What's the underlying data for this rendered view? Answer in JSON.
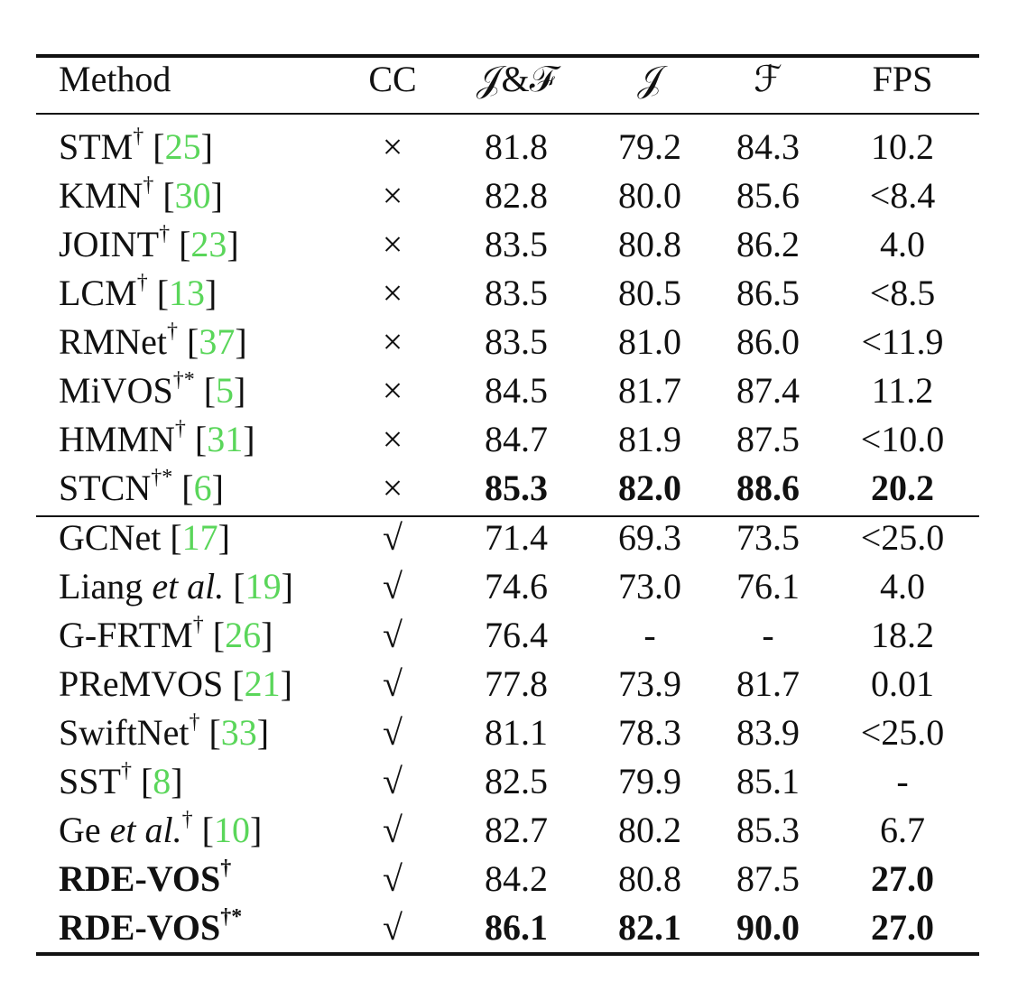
{
  "table": {
    "header": [
      "Method",
      "CC",
      "𝒥&ℱ",
      "𝒥",
      "ℱ",
      "FPS"
    ],
    "groups": [
      {
        "rows": [
          {
            "name": "STM",
            "sup": "†",
            "ref": {
              "open": "[",
              "num": "25",
              "close": "]"
            },
            "cc": "×",
            "jf": "81.8",
            "j": "79.2",
            "f": "84.3",
            "fps": "10.2"
          },
          {
            "name": "KMN",
            "sup": "†",
            "ref": {
              "open": "[",
              "num": "30",
              "close": "]"
            },
            "cc": "×",
            "jf": "82.8",
            "j": "80.0",
            "f": "85.6",
            "fps": "<8.4"
          },
          {
            "name": "JOINT",
            "sup": "†",
            "ref": {
              "open": "[",
              "num": "23",
              "close": "]"
            },
            "cc": "×",
            "jf": "83.5",
            "j": "80.8",
            "f": "86.2",
            "fps": "4.0"
          },
          {
            "name": "LCM",
            "sup": "†",
            "ref": {
              "open": "[",
              "num": "13",
              "close": "]"
            },
            "cc": "×",
            "jf": "83.5",
            "j": "80.5",
            "f": "86.5",
            "fps": "<8.5"
          },
          {
            "name": "RMNet",
            "sup": "†",
            "ref": {
              "open": "[",
              "num": "37",
              "close": "]"
            },
            "cc": "×",
            "jf": "83.5",
            "j": "81.0",
            "f": "86.0",
            "fps": "<11.9"
          },
          {
            "name": "MiVOS",
            "sup": "†*",
            "ref": {
              "open": "[",
              "num": "5",
              "close": "]"
            },
            "cc": "×",
            "jf": "84.5",
            "j": "81.7",
            "f": "87.4",
            "fps": "11.2"
          },
          {
            "name": "HMMN",
            "sup": "†",
            "ref": {
              "open": "[",
              "num": "31",
              "close": "]"
            },
            "cc": "×",
            "jf": "84.7",
            "j": "81.9",
            "f": "87.5",
            "fps": "<10.0"
          },
          {
            "name": "STCN",
            "sup": "†*",
            "ref": {
              "open": "[",
              "num": "6",
              "close": "]"
            },
            "cc": "×",
            "jf": "85.3",
            "j": "82.0",
            "f": "88.6",
            "fps": "20.2",
            "bold": [
              "jf",
              "j",
              "f",
              "fps"
            ]
          }
        ]
      },
      {
        "rows": [
          {
            "name": "GCNet",
            "ref": {
              "open": "[",
              "num": "17",
              "close": "]"
            },
            "cc": "√",
            "jf": "71.4",
            "j": "69.3",
            "f": "73.5",
            "fps": "<25.0"
          },
          {
            "name": "Liang",
            "italic": "et al.",
            "ref": {
              "open": "[",
              "num": "19",
              "close": "]"
            },
            "cc": "√",
            "jf": "74.6",
            "j": "73.0",
            "f": "76.1",
            "fps": "4.0"
          },
          {
            "name": "G-FRTM",
            "sup": "†",
            "ref": {
              "open": "[",
              "num": "26",
              "close": "]"
            },
            "cc": "√",
            "jf": "76.4",
            "j": "-",
            "f": "-",
            "fps": "18.2"
          },
          {
            "name": "PReMVOS",
            "ref": {
              "open": "[",
              "num": "21",
              "close": "]"
            },
            "cc": "√",
            "jf": "77.8",
            "j": "73.9",
            "f": "81.7",
            "fps": "0.01"
          },
          {
            "name": "SwiftNet",
            "sup": "†",
            "ref": {
              "open": "[",
              "num": "33",
              "close": "]"
            },
            "cc": "√",
            "jf": "81.1",
            "j": "78.3",
            "f": "83.9",
            "fps": "<25.0"
          },
          {
            "name": "SST",
            "sup": "†",
            "ref": {
              "open": "[",
              "num": "8",
              "close": "]"
            },
            "cc": "√",
            "jf": "82.5",
            "j": "79.9",
            "f": "85.1",
            "fps": "-"
          },
          {
            "name": "Ge",
            "italic": "et al.",
            "sup": "†",
            "ref": {
              "open": "[",
              "num": "10",
              "close": "]"
            },
            "cc": "√",
            "jf": "82.7",
            "j": "80.2",
            "f": "85.3",
            "fps": "6.7"
          },
          {
            "name": "RDE-VOS",
            "sup": "†",
            "cc": "√",
            "jf": "84.2",
            "j": "80.8",
            "f": "87.5",
            "fps": "27.0",
            "bold": [
              "name",
              "fps"
            ]
          },
          {
            "name": "RDE-VOS",
            "sup": "†*",
            "cc": "√",
            "jf": "86.1",
            "j": "82.1",
            "f": "90.0",
            "fps": "27.0",
            "bold": [
              "name",
              "jf",
              "j",
              "f",
              "fps"
            ]
          }
        ]
      }
    ]
  }
}
